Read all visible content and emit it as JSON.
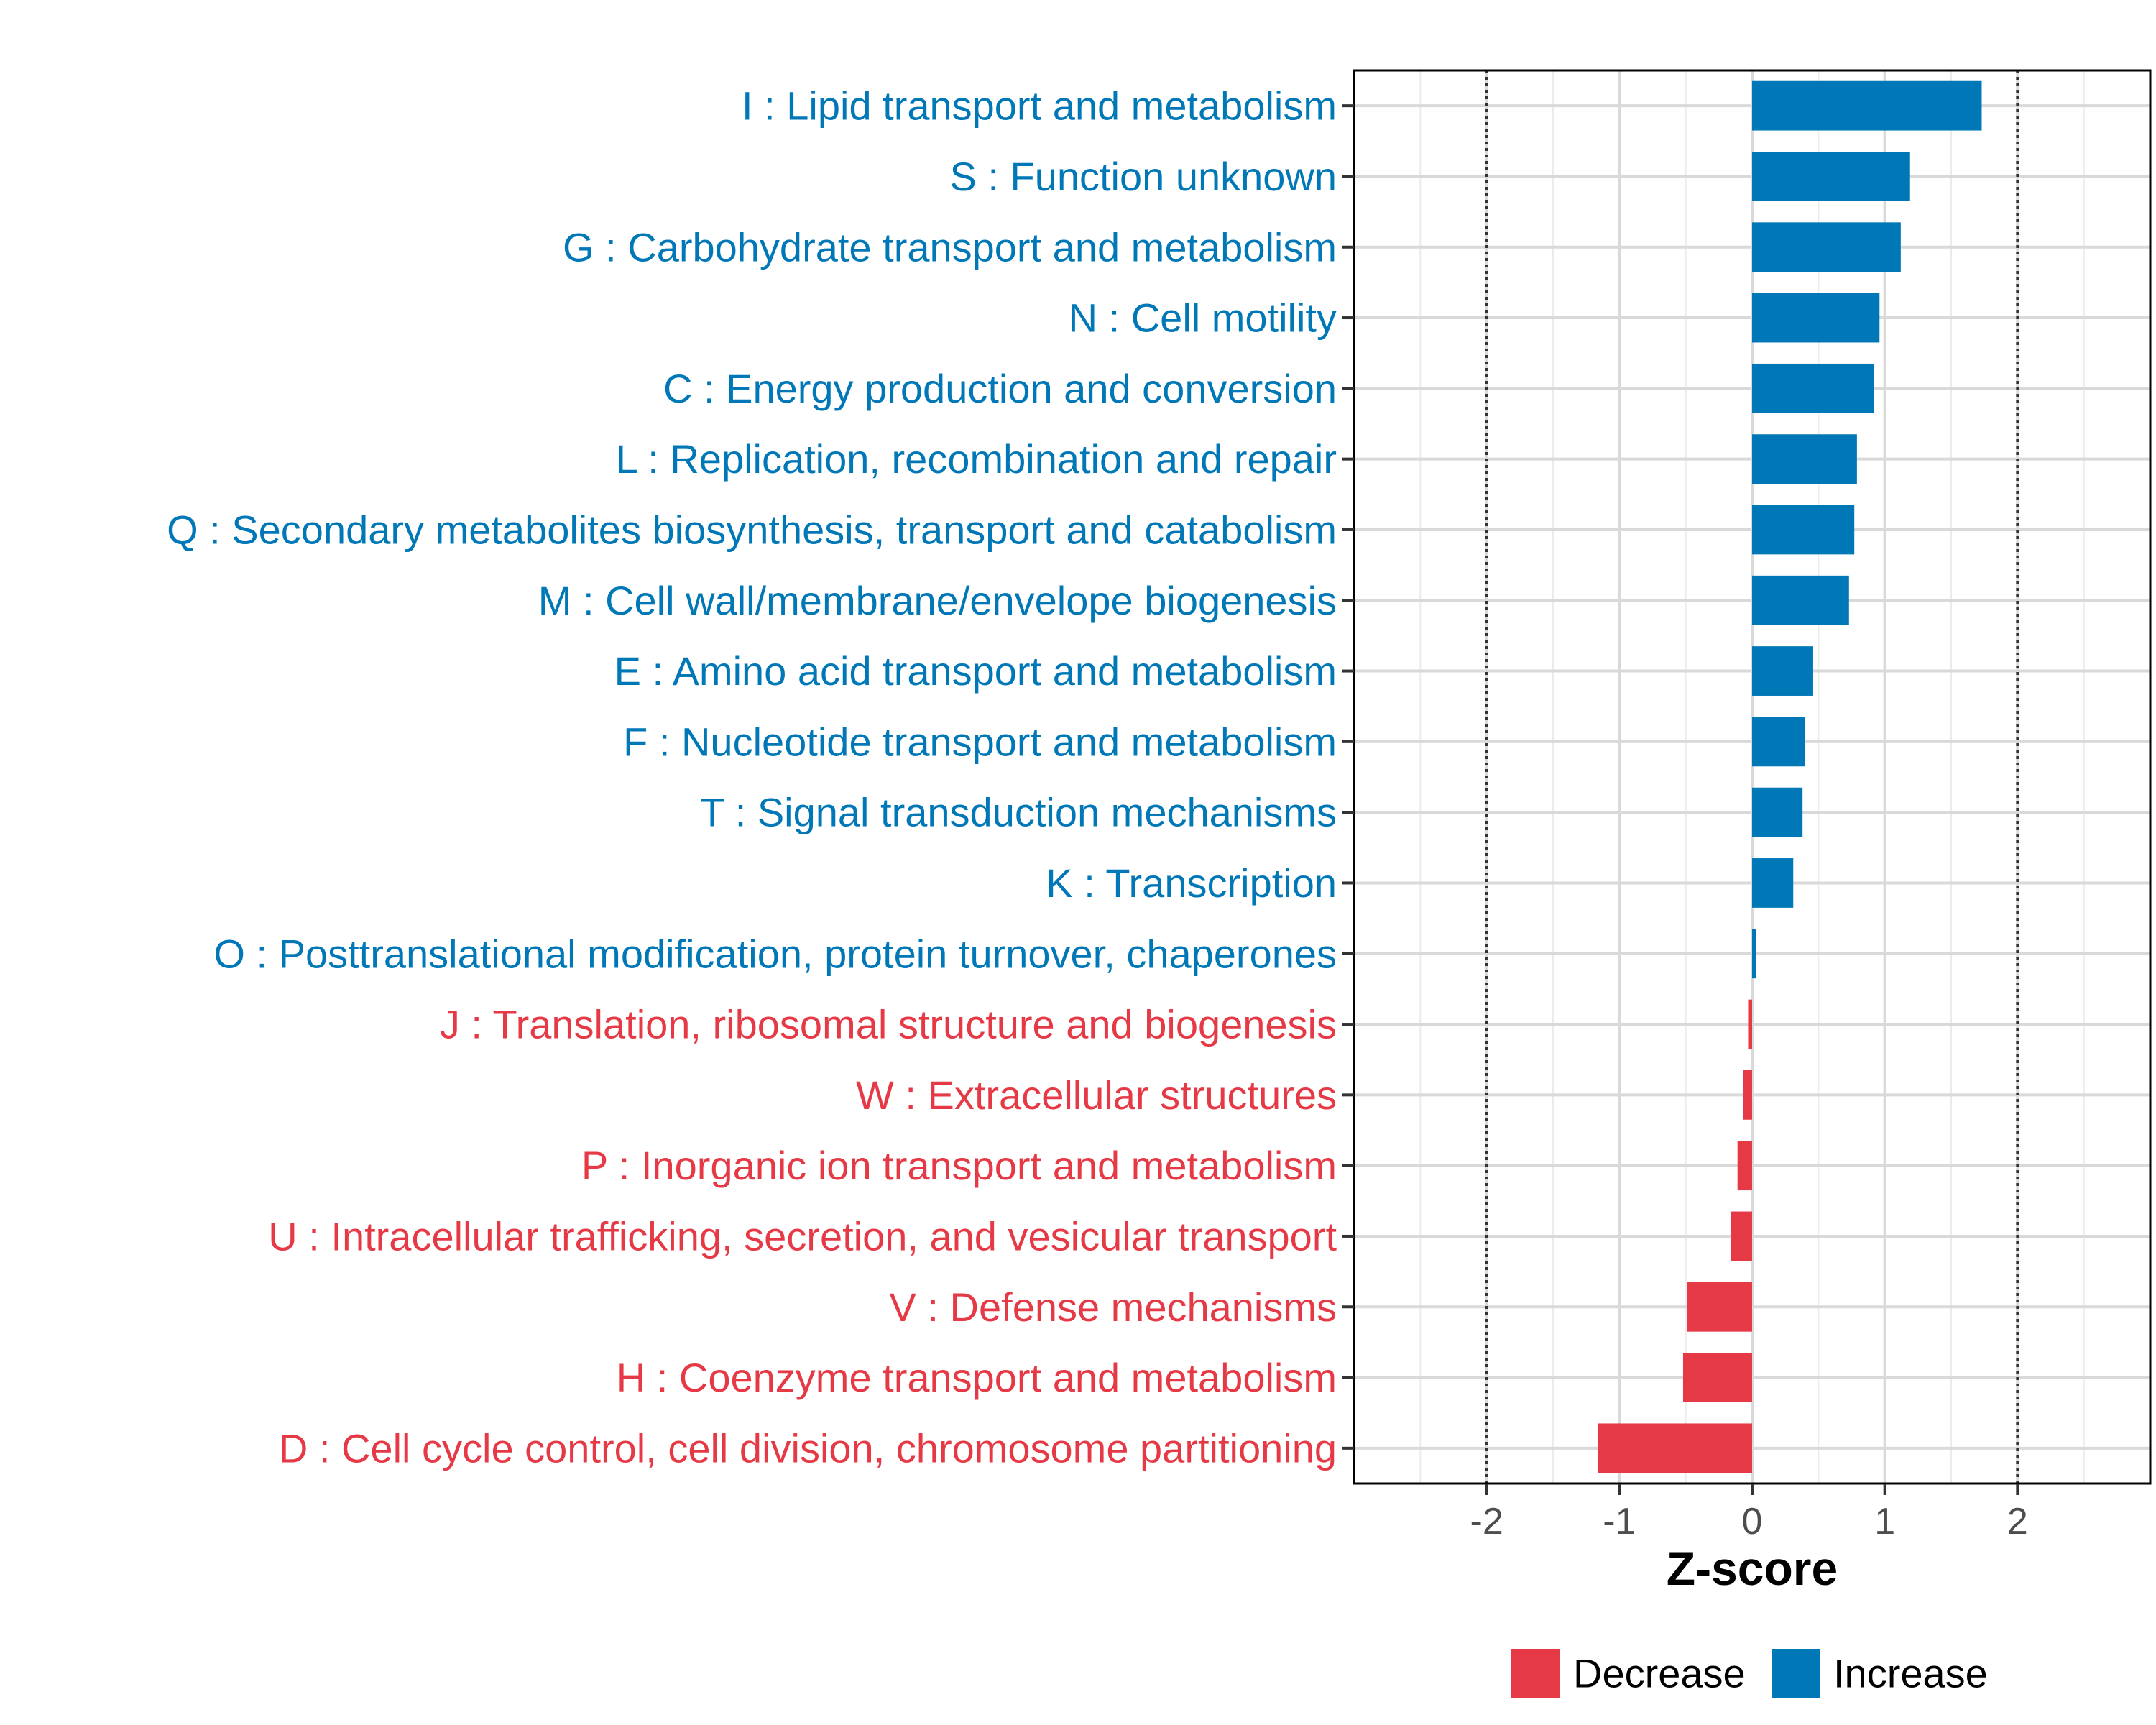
{
  "chart_data": {
    "type": "bar",
    "orientation": "horizontal",
    "title": "",
    "xlabel": "Z-score",
    "ylabel": "",
    "xlim": [
      -3,
      3
    ],
    "xticks": [
      -2,
      -1,
      0,
      1,
      2
    ],
    "xtick_labels": [
      "-2",
      "-1",
      "0",
      "1",
      "2"
    ],
    "reference_lines": [
      -2,
      2
    ],
    "grid": true,
    "categories": [
      "I : Lipid transport and metabolism",
      "S : Function unknown",
      "G : Carbohydrate transport and metabolism",
      "N : Cell motility",
      "C : Energy production and conversion",
      "L : Replication, recombination and repair",
      "Q : Secondary metabolites biosynthesis, transport and catabolism",
      "M : Cell wall/membrane/envelope biogenesis",
      "E : Amino acid transport and metabolism",
      "F : Nucleotide transport and metabolism",
      "T : Signal transduction mechanisms",
      "K : Transcription",
      "O : Posttranslational modification, protein turnover, chaperones",
      "J : Translation, ribosomal structure and biogenesis",
      "W : Extracellular structures",
      "P : Inorganic ion transport and metabolism",
      "U : Intracellular trafficking, secretion, and vesicular transport",
      "V : Defense mechanisms",
      "H : Coenzyme transport and metabolism",
      "D : Cell cycle control, cell division, chromosome partitioning"
    ],
    "values": [
      1.73,
      1.19,
      1.12,
      0.96,
      0.92,
      0.79,
      0.77,
      0.73,
      0.46,
      0.4,
      0.38,
      0.31,
      0.03,
      -0.03,
      -0.07,
      -0.11,
      -0.16,
      -0.49,
      -0.52,
      -1.16
    ],
    "groups": [
      "Increase",
      "Increase",
      "Increase",
      "Increase",
      "Increase",
      "Increase",
      "Increase",
      "Increase",
      "Increase",
      "Increase",
      "Increase",
      "Increase",
      "Increase",
      "Decrease",
      "Decrease",
      "Decrease",
      "Decrease",
      "Decrease",
      "Decrease",
      "Decrease"
    ],
    "legend": {
      "position": "bottom",
      "entries": [
        {
          "label": "Decrease",
          "color": "#E63946"
        },
        {
          "label": "Increase",
          "color": "#0077B6"
        }
      ]
    },
    "colors": {
      "Increase": "#0077B6",
      "Decrease": "#E63946"
    }
  }
}
